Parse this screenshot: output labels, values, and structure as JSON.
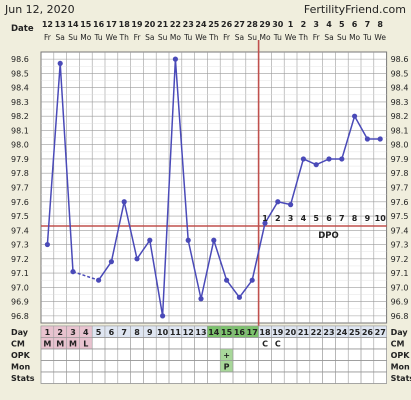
{
  "header": {
    "date": "Jun 12, 2020",
    "site": "FertilityFriend.com"
  },
  "labels": {
    "date_row": "Date",
    "day_row": "Day",
    "cm_row": "CM",
    "opk_row": "OPK",
    "mon_row": "Mon",
    "stats_row": "Stats",
    "dpo": "DPO"
  },
  "colors": {
    "background": "#f0eedd",
    "line": "#4a4ab8",
    "grid": "#9c9c9c",
    "coverline": "#c0504d",
    "ovulation_line": "#c0504d",
    "menses_cell": "#e8c3cf",
    "fertile_cell": "#a8d89a",
    "fertile_cell_dark": "#7cc36c",
    "opk_positive_cell": "#a8d89a"
  },
  "chart_data": {
    "type": "line",
    "title": "",
    "xlabel": "",
    "ylabel": "",
    "ylim": [
      96.75,
      98.65
    ],
    "yticks": [
      "98.6",
      "98.5",
      "98.4",
      "98.3",
      "98.2",
      "98.1",
      "98.0",
      "97.9",
      "97.8",
      "97.7",
      "97.6",
      "97.5",
      "97.4",
      "97.3",
      "97.2",
      "97.1",
      "97.0",
      "96.9",
      "96.8"
    ],
    "cycle_days": [
      1,
      2,
      3,
      4,
      5,
      6,
      7,
      8,
      9,
      10,
      11,
      12,
      13,
      14,
      15,
      16,
      17,
      18,
      19,
      20,
      21,
      22,
      23,
      24,
      25,
      26,
      27
    ],
    "dates": [
      "12",
      "13",
      "14",
      "15",
      "16",
      "17",
      "18",
      "19",
      "20",
      "21",
      "22",
      "23",
      "24",
      "25",
      "26",
      "27",
      "28",
      "29",
      "30",
      "1",
      "2",
      "3",
      "4",
      "5",
      "6",
      "7",
      "8"
    ],
    "weekdays": [
      "Fr",
      "Sa",
      "Su",
      "Mo",
      "Tu",
      "We",
      "Th",
      "Fr",
      "Sa",
      "Su",
      "Mo",
      "Tu",
      "We",
      "Th",
      "Fr",
      "Sa",
      "Su",
      "Mo",
      "Tu",
      "We",
      "Th",
      "Fr",
      "Sa",
      "Su",
      "Mo",
      "Tu",
      "We"
    ],
    "series": [
      {
        "values": [
          97.3,
          98.57,
          97.11,
          null,
          97.05,
          97.18,
          97.6,
          97.2,
          97.33,
          96.8,
          98.6,
          97.33,
          96.92,
          97.33,
          97.05,
          96.93,
          97.05,
          97.45,
          97.6,
          97.58,
          97.9,
          97.86,
          97.9,
          97.9,
          98.2,
          98.04,
          98.04
        ]
      }
    ],
    "connected_segments": [
      [
        1,
        3
      ],
      [
        5,
        27
      ]
    ],
    "dashed_segments": [
      [
        3,
        5
      ]
    ],
    "coverline": 97.43,
    "ovulation_day": 17,
    "dpo_labels": [
      "1",
      "2",
      "3",
      "4",
      "5",
      "6",
      "7",
      "8",
      "9",
      "10"
    ],
    "dpo_start_day": 18,
    "rows": {
      "cm": [
        "M",
        "M",
        "M",
        "L",
        "",
        "",
        "",
        "",
        "",
        "",
        "",
        "",
        "",
        "",
        "",
        "",
        "",
        "C",
        "C",
        "",
        "",
        "",
        "",
        "",
        "",
        "",
        ""
      ],
      "opk": [
        "",
        "",
        "",
        "",
        "",
        "",
        "",
        "",
        "",
        "",
        "",
        "",
        "",
        "",
        "+",
        "",
        "",
        "",
        "",
        "",
        "",
        "",
        "",
        "",
        "",
        "",
        ""
      ],
      "mon": [
        "",
        "",
        "",
        "",
        "",
        "",
        "",
        "",
        "",
        "",
        "",
        "",
        "",
        "",
        "P",
        "",
        "",
        "",
        "",
        "",
        "",
        "",
        "",
        "",
        "",
        "",
        ""
      ]
    },
    "menses_days": [
      1,
      2,
      3,
      4
    ],
    "fertile_days": [
      14,
      15,
      16,
      17
    ],
    "grid": true
  }
}
